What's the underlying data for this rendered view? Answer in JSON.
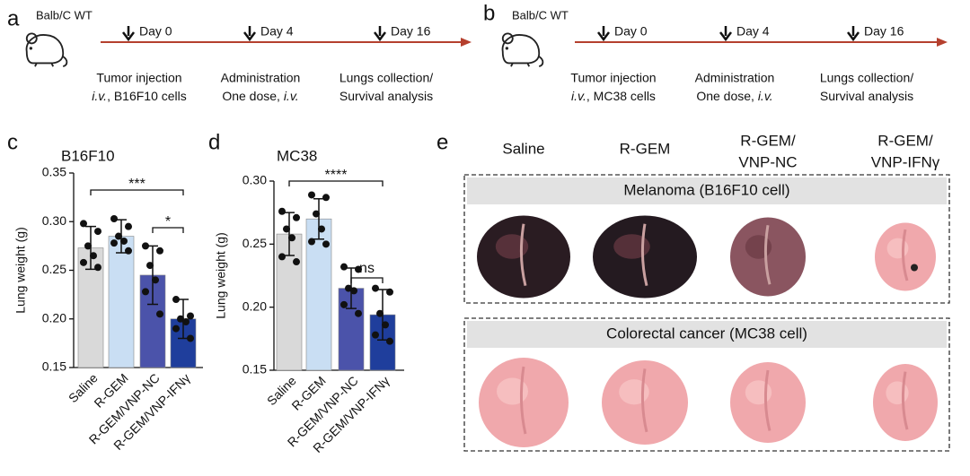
{
  "panels": [
    "a",
    "b",
    "c",
    "d",
    "e"
  ],
  "timelines": [
    {
      "strain": "Balb/C WT",
      "events": [
        {
          "day": "Day 0",
          "line1": "Tumor injection",
          "line2": [
            {
              "text": "i.v.",
              "italic": true
            },
            {
              "text": ", B16F10 cells"
            }
          ]
        },
        {
          "day": "Day 4",
          "line1": "Administration",
          "line2": [
            {
              "text": "One dose, "
            },
            {
              "text": "i.v.",
              "italic": true
            }
          ]
        },
        {
          "day": "Day 16",
          "line1": "Lungs collection/",
          "line2": [
            {
              "text": "Survival analysis"
            }
          ]
        }
      ]
    },
    {
      "strain": "Balb/C WT",
      "events": [
        {
          "day": "Day 0",
          "line1": "Tumor injection",
          "line2": [
            {
              "text": "i.v.",
              "italic": true
            },
            {
              "text": ", MC38 cells"
            }
          ]
        },
        {
          "day": "Day 4",
          "line1": "Administration",
          "line2": [
            {
              "text": "One dose, "
            },
            {
              "text": "i.v.",
              "italic": true
            }
          ]
        },
        {
          "day": "Day 16",
          "line1": "Lungs collection/",
          "line2": [
            {
              "text": "Survival analysis"
            }
          ]
        }
      ]
    }
  ],
  "chart_data": [
    {
      "type": "bar",
      "title": "B16F10",
      "ylabel": "Lung weight (g)",
      "categories": [
        "Saline",
        "R-GEM",
        "R-GEM/VNP-NC",
        "R-GEM/VNP-IFNγ"
      ],
      "values": [
        0.273,
        0.285,
        0.245,
        0.2
      ],
      "errors": [
        0.022,
        0.017,
        0.03,
        0.02
      ],
      "points": [
        [
          0.298,
          0.29,
          0.275,
          0.265,
          0.258,
          0.253
        ],
        [
          0.303,
          0.295,
          0.285,
          0.28,
          0.278,
          0.27
        ],
        [
          0.275,
          0.27,
          0.255,
          0.24,
          0.228,
          0.205
        ],
        [
          0.22,
          0.203,
          0.2,
          0.197,
          0.19,
          0.18
        ]
      ],
      "colors": [
        "#d9d9d9",
        "#c9def3",
        "#4b53aa",
        "#1f3e9c"
      ],
      "ylim": [
        0.15,
        0.35
      ],
      "yticks": [
        0.15,
        {
          "value": 0.2,
          "label": "0.20"
        },
        0.25,
        {
          "value": 0.3,
          "label": "0.30"
        },
        0.35
      ],
      "annotations": [
        "***",
        "*"
      ]
    },
    {
      "type": "bar",
      "title": "MC38",
      "ylabel": "Lung weight (g)",
      "categories": [
        "Saline",
        "R-GEM",
        "R-GEM/VNP-NC",
        "R-GEM/VNP-IFNγ"
      ],
      "values": [
        0.258,
        0.27,
        0.215,
        0.194
      ],
      "errors": [
        0.017,
        0.016,
        0.016,
        0.02
      ],
      "points": [
        [
          0.276,
          0.271,
          0.262,
          0.255,
          0.24,
          0.236
        ],
        [
          0.289,
          0.287,
          0.274,
          0.262,
          0.252,
          0.25
        ],
        [
          0.232,
          0.23,
          0.215,
          0.213,
          0.202,
          0.195
        ],
        [
          0.215,
          0.212,
          0.195,
          0.186,
          0.178,
          0.173
        ]
      ],
      "colors": [
        "#d9d9d9",
        "#c9def3",
        "#4b53aa",
        "#1f3e9c"
      ],
      "ylim": [
        0.15,
        0.3
      ],
      "yticks": [
        0.15,
        {
          "value": 0.2,
          "label": "0.20"
        },
        0.25,
        {
          "value": 0.3,
          "label": "0.30"
        }
      ],
      "annotations": [
        "****",
        "ns"
      ]
    }
  ],
  "photos": {
    "columns": [
      [
        "Saline"
      ],
      [
        "R-GEM"
      ],
      [
        "R-GEM/",
        "VNP-NC"
      ],
      [
        "R-GEM/",
        "VNP-IFNγ"
      ]
    ],
    "rows": [
      "Melanoma (B16F10 cell)",
      "Colorectal cancer (MC38 cell)"
    ]
  }
}
